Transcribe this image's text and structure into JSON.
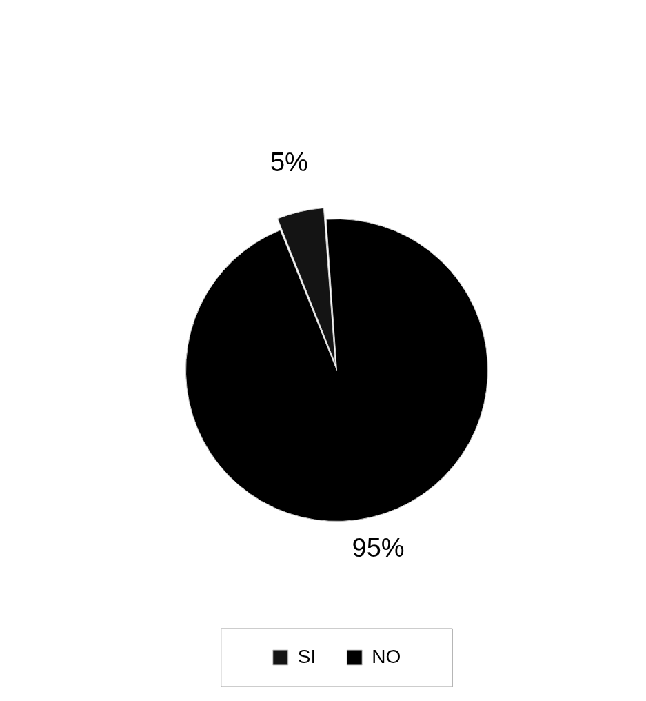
{
  "chart_data": {
    "type": "pie",
    "categories": [
      "SI",
      "NO"
    ],
    "values": [
      5,
      95
    ],
    "colors": [
      "#141414",
      "#000000"
    ],
    "value_labels": [
      "5%",
      "95%"
    ],
    "legend": "bottom"
  }
}
